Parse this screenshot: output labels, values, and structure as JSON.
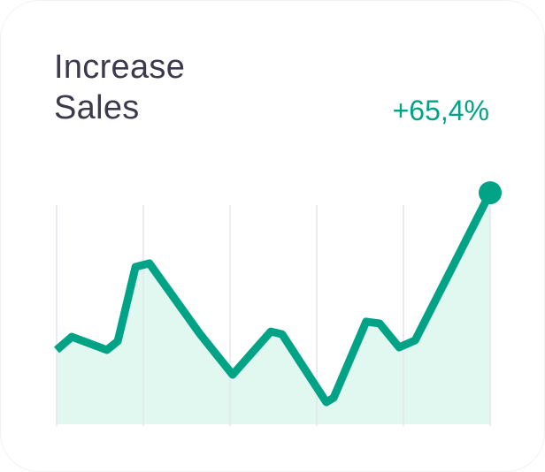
{
  "title_line1": "Increase",
  "title_line2": "Sales",
  "change_label": "+65,4%",
  "colors": {
    "line": "#00a386",
    "fill": "#e0f8f0",
    "grid": "#e6e8ee",
    "title": "#3d3a4e",
    "accent": "#00a386"
  },
  "chart_data": {
    "type": "area",
    "title": "Increase Sales",
    "xlabel": "",
    "ylabel": "",
    "xlim": [
      0,
      100
    ],
    "ylim": [
      0,
      110
    ],
    "grid": "vertical",
    "gridlines_x": [
      0,
      20,
      40,
      60,
      80,
      100
    ],
    "end_marker": true,
    "x": [
      0,
      3.5,
      11.6,
      14.1,
      18.2,
      21.4,
      33.1,
      40.6,
      49.4,
      52,
      62.2,
      63.9,
      71.4,
      74.5,
      79,
      82.7,
      100
    ],
    "y": [
      33.9,
      39.9,
      33.9,
      37.9,
      71.8,
      73.4,
      41.1,
      22.6,
      42.3,
      41.1,
      10.1,
      12.1,
      46.8,
      46,
      35.1,
      38.3,
      105.6
    ]
  }
}
